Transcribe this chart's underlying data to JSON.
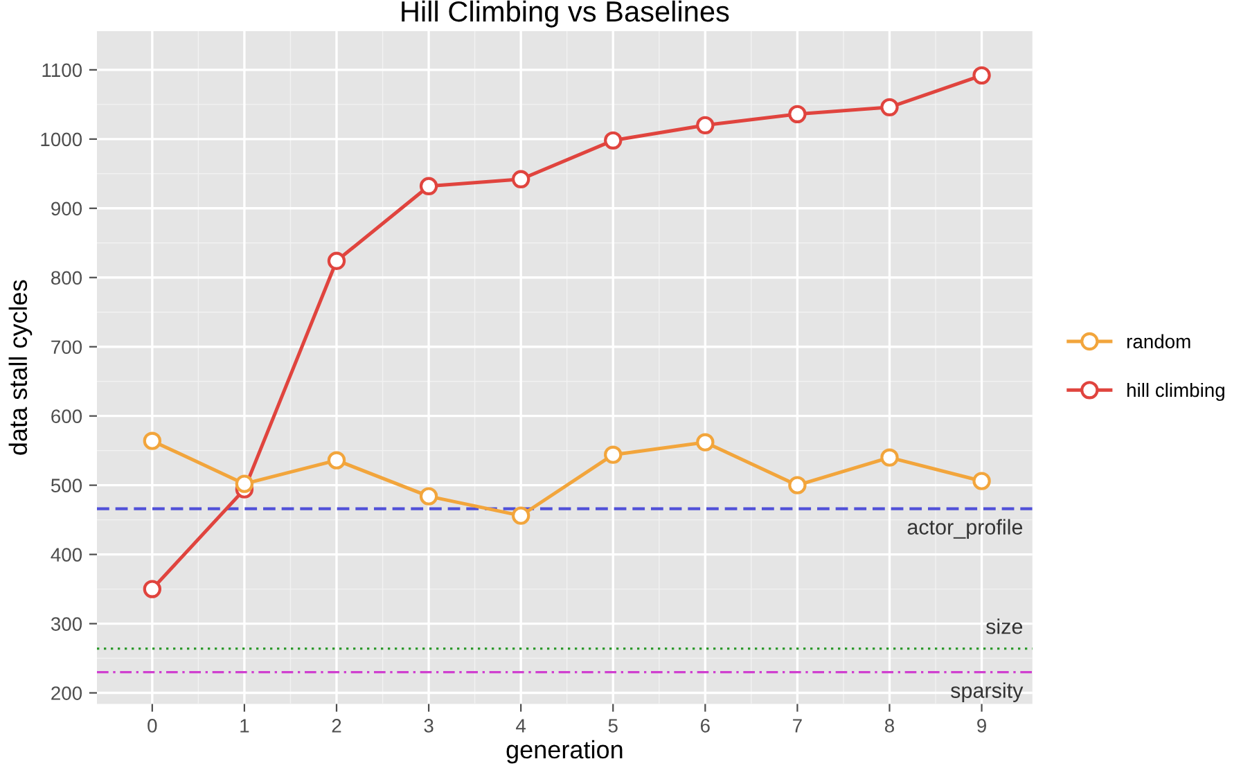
{
  "chart_data": {
    "type": "line",
    "title": "Hill Climbing vs Baselines",
    "xlabel": "generation",
    "ylabel": "data stall cycles",
    "x": [
      0,
      1,
      2,
      3,
      4,
      5,
      6,
      7,
      8,
      9
    ],
    "series": [
      {
        "name": "random",
        "color": "#f2a53c",
        "values": [
          564,
          502,
          536,
          484,
          456,
          544,
          562,
          500,
          540,
          506
        ]
      },
      {
        "name": "hill climbing",
        "color": "#e0443e",
        "values": [
          350,
          494,
          824,
          932,
          942,
          998,
          1020,
          1036,
          1046,
          1092
        ]
      }
    ],
    "xlim": [
      -0.6,
      9.55
    ],
    "ylim": [
      184,
      1156
    ],
    "xticks": [
      0,
      1,
      2,
      3,
      4,
      5,
      6,
      7,
      8,
      9
    ],
    "yticks": [
      200,
      300,
      400,
      500,
      600,
      700,
      800,
      900,
      1000,
      1100
    ],
    "ref_lines": [
      {
        "axis": "y",
        "value": 466,
        "label": "actor_profile",
        "color": "#5050d8",
        "line_style": "dashed"
      },
      {
        "axis": "y",
        "value": 264,
        "label": "size",
        "color": "#2e9a2e",
        "line_style": "dotted"
      },
      {
        "axis": "y",
        "value": 230,
        "label": "sparsity",
        "color": "#d040d0",
        "line_style": "dashdot"
      }
    ],
    "grid": true,
    "legend": "right",
    "marker": "circle",
    "line_style": "solid"
  }
}
